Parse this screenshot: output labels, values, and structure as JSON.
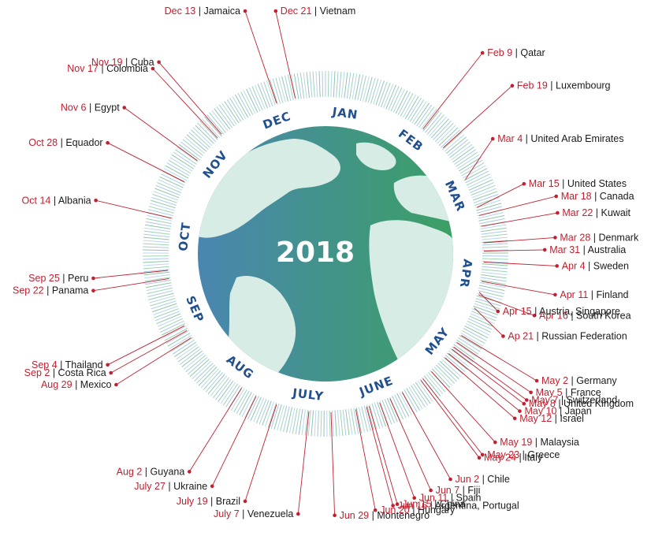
{
  "center": {
    "year": "2018"
  },
  "colors": {
    "accent": "#c0202f",
    "month": "#1f4f8f",
    "ocean_left": "#4a86b0",
    "ocean_right": "#3ba064",
    "land": "#d8ece6"
  },
  "months": [
    {
      "label": "JAN",
      "angle": 8
    },
    {
      "label": "FEB",
      "angle": 37
    },
    {
      "label": "MAR",
      "angle": 66
    },
    {
      "label": "APR",
      "angle": 98
    },
    {
      "label": "MAY",
      "angle": 128
    },
    {
      "label": "JUNE",
      "angle": 159
    },
    {
      "label": "JULY",
      "angle": 187
    },
    {
      "label": "AUG",
      "angle": 217
    },
    {
      "label": "SEP",
      "angle": 247
    },
    {
      "label": "OCT",
      "angle": 277
    },
    {
      "label": "NOV",
      "angle": 309
    },
    {
      "label": "DEC",
      "angle": 340
    }
  ],
  "events": [
    {
      "date": "Dec 21",
      "country": "Vietnam",
      "angle": 349,
      "side": "right"
    },
    {
      "date": "Dec 13",
      "country": "Jamaica",
      "angle": 342,
      "side": "left"
    },
    {
      "date": "Nov 19",
      "country": "Cuba",
      "angle": 319,
      "side": "left"
    },
    {
      "date": "Nov 17",
      "country": "Colombia",
      "angle": 317,
      "side": "left"
    },
    {
      "date": "Nov 6",
      "country": "Egypt",
      "angle": 306,
      "side": "left"
    },
    {
      "date": "Oct 28",
      "country": "Equador",
      "angle": 297,
      "side": "left"
    },
    {
      "date": "Oct 14",
      "country": "Albania",
      "angle": 283,
      "side": "left"
    },
    {
      "date": "Sep 25",
      "country": "Peru",
      "angle": 264,
      "side": "left"
    },
    {
      "date": "Sep 22",
      "country": "Panama",
      "angle": 261,
      "side": "left"
    },
    {
      "date": "Sep 4",
      "country": "Thailand",
      "angle": 243,
      "side": "left"
    },
    {
      "date": "Sep 2",
      "country": "Costa Rica",
      "angle": 241,
      "side": "left"
    },
    {
      "date": "Aug 29",
      "country": "Mexico",
      "angle": 238,
      "side": "left"
    },
    {
      "date": "Aug 2",
      "country": "Guyana",
      "angle": 212,
      "side": "left"
    },
    {
      "date": "July 27",
      "country": "Ukraine",
      "angle": 206,
      "side": "left"
    },
    {
      "date": "July 19",
      "country": "Brazil",
      "angle": 198,
      "side": "left"
    },
    {
      "date": "July 7",
      "country": "Venezuela",
      "angle": 186,
      "side": "left"
    },
    {
      "date": "Jun 29",
      "country": "Montenegro",
      "angle": 178,
      "side": "right"
    },
    {
      "date": "Jun 20",
      "country": "Hungary",
      "angle": 169,
      "side": "right"
    },
    {
      "date": "Jun 16",
      "country": "Argentina, Portugal",
      "angle": 165,
      "side": "right"
    },
    {
      "date": "Jun 15",
      "country": "China",
      "angle": 164,
      "side": "right"
    },
    {
      "date": "Jun 11",
      "country": "Spain",
      "angle": 160,
      "side": "right"
    },
    {
      "date": "Jun 7",
      "country": "Fiji",
      "angle": 156,
      "side": "right"
    },
    {
      "date": "Jun 2",
      "country": "Chile",
      "angle": 151,
      "side": "right"
    },
    {
      "date": "May 24",
      "country": "Italy",
      "angle": 143,
      "side": "right"
    },
    {
      "date": "May 23",
      "country": "Greece",
      "angle": 142,
      "side": "right"
    },
    {
      "date": "May 19",
      "country": "Malaysia",
      "angle": 138,
      "side": "right"
    },
    {
      "date": "May 12",
      "country": "Israel",
      "angle": 131,
      "side": "right"
    },
    {
      "date": "May 10",
      "country": "Japan",
      "angle": 129,
      "side": "right"
    },
    {
      "date": "May 8",
      "country": "United Kingdom",
      "angle": 127,
      "side": "right"
    },
    {
      "date": "May 7",
      "country": "Switzerland",
      "angle": 126,
      "side": "right"
    },
    {
      "date": "May 5",
      "country": "France",
      "angle": 124,
      "side": "right"
    },
    {
      "date": "May 2",
      "country": "Germany",
      "angle": 121,
      "side": "right"
    },
    {
      "date": "Ap 21",
      "country": "Russian Federation",
      "angle": 110,
      "side": "right"
    },
    {
      "date": "Apr 16",
      "country": "South Korea",
      "angle": 105,
      "side": "right"
    },
    {
      "date": "Apr 15",
      "country": "Austria, Singapore",
      "angle": 104,
      "side": "right"
    },
    {
      "date": "Apr 11",
      "country": "Finland",
      "angle": 100,
      "side": "right"
    },
    {
      "date": "Apr 4",
      "country": "Sweden",
      "angle": 93,
      "side": "right"
    },
    {
      "date": "Mar 31",
      "country": "Australia",
      "angle": 89,
      "side": "right"
    },
    {
      "date": "Mar 28",
      "country": "Denmark",
      "angle": 86,
      "side": "right"
    },
    {
      "date": "Mar 22",
      "country": "Kuwait",
      "angle": 80,
      "side": "right"
    },
    {
      "date": "Mar 18",
      "country": "Canada",
      "angle": 76,
      "side": "right"
    },
    {
      "date": "Mar 15",
      "country": "United States",
      "angle": 73,
      "side": "right"
    },
    {
      "date": "Mar 4",
      "country": "United Arab Emirates",
      "angle": 62,
      "side": "right"
    },
    {
      "date": "Feb 19",
      "country": "Luxembourg",
      "angle": 48,
      "side": "right"
    },
    {
      "date": "Feb 9",
      "country": "Qatar",
      "angle": 38,
      "side": "right"
    }
  ]
}
